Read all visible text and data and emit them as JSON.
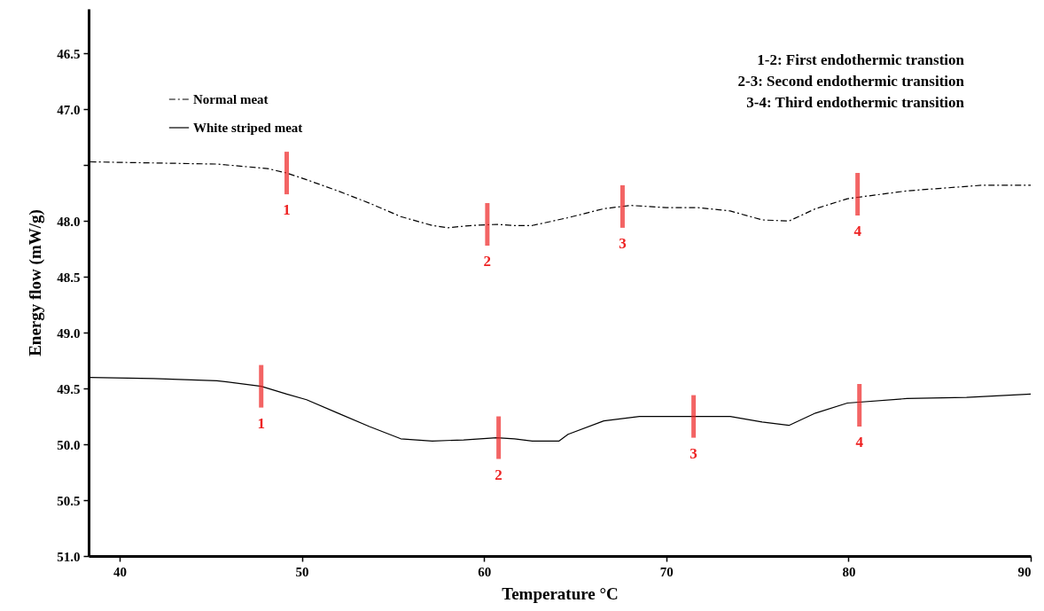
{
  "chart_data": {
    "type": "line",
    "xlabel": "Temperature °C",
    "ylabel": "Energy flow (mW/g)",
    "xlim": [
      38.3,
      90
    ],
    "xticks": [
      40,
      50,
      60,
      70,
      80,
      90
    ],
    "ylim": [
      51.0,
      46.1
    ],
    "yticks": [
      46.5,
      {
        "value": 47,
        "label": "47.0"
      },
      {
        "value": 47.5,
        "label": null
      },
      {
        "value": 48,
        "label": "48.0"
      },
      48.5,
      {
        "value": 49,
        "label": "49.0"
      },
      49.5,
      {
        "value": 50,
        "label": "50.0"
      },
      50.5,
      {
        "value": 51,
        "label": "51.0"
      }
    ],
    "grid": false,
    "legend": "top left",
    "series": [
      {
        "name": "Normal meat",
        "color": "#000000",
        "line_style": "dashed",
        "x": [
          38.38,
          41.86,
          45.34,
          48.12,
          49.17,
          50.26,
          51.98,
          53.71,
          55.43,
          57.16,
          58.02,
          59.31,
          60.69,
          61.67,
          62.65,
          64.61,
          66.57,
          68.04,
          70.0,
          71.75,
          73.51,
          75.26,
          76.73,
          78.19,
          79.94,
          83.2,
          87.3,
          90.0
        ],
        "values": [
          47.47,
          47.48,
          47.49,
          47.53,
          47.57,
          47.63,
          47.73,
          47.84,
          47.96,
          48.04,
          48.06,
          48.04,
          48.03,
          48.04,
          48.04,
          47.97,
          47.89,
          47.86,
          47.88,
          47.88,
          47.91,
          47.99,
          48.0,
          47.89,
          47.8,
          47.73,
          47.68,
          47.68
        ]
      },
      {
        "name": "White striped meat",
        "color": "#000000",
        "line_style": "solid",
        "x": [
          38.38,
          41.86,
          45.34,
          47.77,
          49.17,
          50.26,
          51.98,
          53.71,
          55.43,
          57.16,
          58.88,
          60.69,
          61.67,
          62.65,
          64.12,
          64.61,
          66.57,
          68.53,
          70.0,
          71.75,
          73.51,
          75.26,
          76.73,
          78.19,
          79.94,
          83.2,
          86.48,
          90.0
        ],
        "values": [
          49.4,
          49.41,
          49.43,
          49.48,
          49.55,
          49.6,
          49.72,
          49.84,
          49.95,
          49.97,
          49.96,
          49.94,
          49.95,
          49.97,
          49.97,
          49.91,
          49.79,
          49.75,
          49.75,
          49.75,
          49.75,
          49.8,
          49.83,
          49.72,
          49.63,
          49.59,
          49.58,
          49.55
        ]
      }
    ],
    "annotations": [
      "1-2: First endothermic transtion",
      "2-3: Second endothermic transition",
      "3-4: Third endothermic transition",
      {
        "text": "1",
        "x": 49.17,
        "y": 47.57
      },
      {
        "text": "2",
        "x": 60.18,
        "y": 48.03
      },
      {
        "text": "3",
        "x": 67.6,
        "y": 47.87
      },
      {
        "text": "4",
        "x": 80.5,
        "y": 47.76
      },
      {
        "text": "1",
        "x": 47.77,
        "y": 49.48
      },
      {
        "text": "2",
        "x": 60.8,
        "y": 49.94
      },
      {
        "text": "3",
        "x": 71.5,
        "y": 49.75
      },
      {
        "text": "4",
        "x": 80.6,
        "y": 49.65
      }
    ]
  }
}
